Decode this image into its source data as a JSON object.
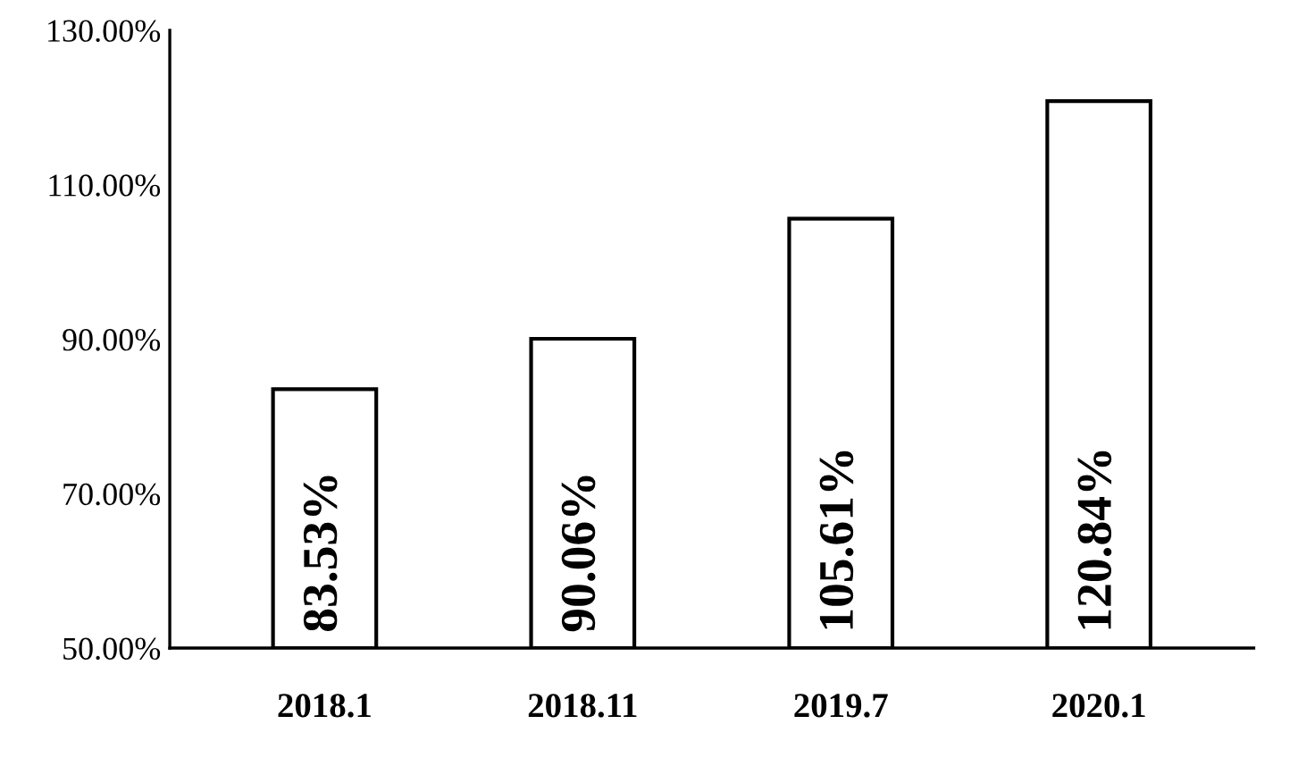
{
  "chart_data": {
    "type": "bar",
    "categories": [
      "2018.1",
      "2018.11",
      "2019.7",
      "2020.1"
    ],
    "values": [
      83.53,
      90.06,
      105.61,
      120.84
    ],
    "value_labels": [
      "83.53%",
      "90.06%",
      "105.61%",
      "120.84%"
    ],
    "color": "#ffffff",
    "ylim": [
      50,
      130
    ],
    "yticks": [
      {
        "value": 50,
        "label": "50.00%"
      },
      {
        "value": 70,
        "label": "70.00%"
      },
      {
        "value": 90,
        "label": "90.00%"
      },
      {
        "value": 110,
        "label": "110.00%"
      },
      {
        "value": 130,
        "label": "130.00%"
      }
    ],
    "grid": false
  }
}
